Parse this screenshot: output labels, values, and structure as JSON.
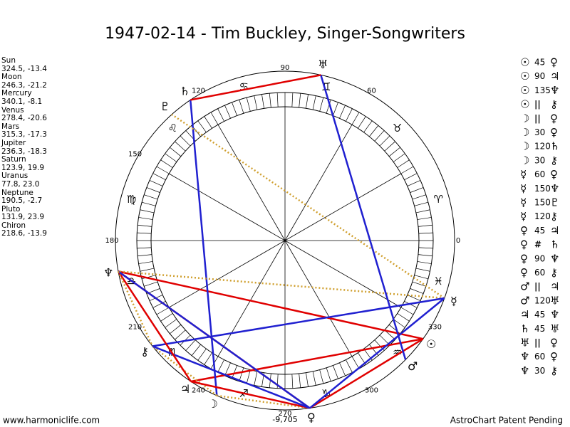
{
  "title": "1947-02-14 - Tim Buckley, Singer-Songwriters",
  "planets": [
    {
      "name": "Sun",
      "position": "324.5, -13.4",
      "glyph": "☉"
    },
    {
      "name": "Moon",
      "position": "246.3, -21.2",
      "glyph": "☽"
    },
    {
      "name": "Mercury",
      "position": "340.1, -8.1",
      "glyph": "☿"
    },
    {
      "name": "Venus",
      "position": "278.4, -20.6",
      "glyph": "♀"
    },
    {
      "name": "Mars",
      "position": "315.3, -17.3",
      "glyph": "♂"
    },
    {
      "name": "Jupiter",
      "position": "236.3, -18.3",
      "glyph": "♃"
    },
    {
      "name": "Saturn",
      "position": "123.9, 19.9",
      "glyph": "♄"
    },
    {
      "name": "Uranus",
      "position": "77.8, 23.0",
      "glyph": "♅"
    },
    {
      "name": "Neptune",
      "position": "190.5, -2.7",
      "glyph": "♆"
    },
    {
      "name": "Pluto",
      "position": "131.9, 23.9",
      "glyph": "♇"
    },
    {
      "name": "Chiron",
      "position": "218.6, -13.9",
      "glyph": "⚷"
    }
  ],
  "aspects": [
    {
      "from": "☉",
      "aspect": "45",
      "to": "♀"
    },
    {
      "from": "☉",
      "aspect": "90",
      "to": "♃"
    },
    {
      "from": "☉",
      "aspect": "135",
      "to": "♆"
    },
    {
      "from": "☉",
      "aspect": "||",
      "to": "⚷"
    },
    {
      "from": "☽",
      "aspect": "||",
      "to": "♀"
    },
    {
      "from": "☽",
      "aspect": "30",
      "to": "♀"
    },
    {
      "from": "☽",
      "aspect": "120",
      "to": "♄"
    },
    {
      "from": "☽",
      "aspect": "30",
      "to": "⚷"
    },
    {
      "from": "☿",
      "aspect": "60",
      "to": "♀"
    },
    {
      "from": "☿",
      "aspect": "150",
      "to": "♆"
    },
    {
      "from": "☿",
      "aspect": "150",
      "to": "♇"
    },
    {
      "from": "☿",
      "aspect": "120",
      "to": "⚷"
    },
    {
      "from": "♀",
      "aspect": "45",
      "to": "♃"
    },
    {
      "from": "♀",
      "aspect": "#",
      "to": "♄"
    },
    {
      "from": "♀",
      "aspect": "90",
      "to": "♆"
    },
    {
      "from": "♀",
      "aspect": "60",
      "to": "⚷"
    },
    {
      "from": "♂",
      "aspect": "||",
      "to": "♃"
    },
    {
      "from": "♂",
      "aspect": "120",
      "to": "♅"
    },
    {
      "from": "♃",
      "aspect": "45",
      "to": "♆"
    },
    {
      "from": "♄",
      "aspect": "45",
      "to": "♅"
    },
    {
      "from": "♅",
      "aspect": "||",
      "to": "♀"
    },
    {
      "from": "♆",
      "aspect": "60",
      "to": "♀"
    },
    {
      "from": "♆",
      "aspect": "30",
      "to": "⚷"
    }
  ],
  "signs": [
    "♈",
    "♉",
    "♊",
    "♋",
    "♌",
    "♍",
    "♎",
    "♏",
    "♐",
    "♑",
    "♒",
    "♓"
  ],
  "wheel_labels": [
    0,
    60,
    90,
    120,
    150,
    180,
    210,
    240,
    270,
    300,
    330
  ],
  "offset_label": "-9,705",
  "footer_left": "www.harmoniclife.com",
  "footer_right": "AstroChart Patent Pending"
}
